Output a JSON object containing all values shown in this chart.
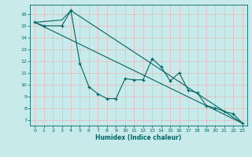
{
  "xlabel": "Humidex (Indice chaleur)",
  "ylabel": "",
  "background_color": "#c8eaea",
  "grid_color": "#e8b8b8",
  "line_color": "#006666",
  "xlim": [
    -0.5,
    23.5
  ],
  "ylim": [
    6.5,
    16.8
  ],
  "yticks": [
    7,
    8,
    9,
    10,
    11,
    12,
    13,
    14,
    15,
    16
  ],
  "xticks": [
    0,
    1,
    2,
    3,
    4,
    5,
    6,
    7,
    8,
    9,
    10,
    11,
    12,
    13,
    14,
    15,
    16,
    17,
    18,
    19,
    20,
    21,
    22,
    23
  ],
  "line1": {
    "x": [
      0,
      1,
      3,
      4,
      5,
      6,
      7,
      8,
      9,
      10,
      11,
      12,
      13,
      14,
      15,
      16,
      17,
      18,
      19,
      20,
      21,
      22,
      23
    ],
    "y": [
      15.3,
      15.0,
      15.0,
      16.3,
      11.8,
      9.8,
      9.2,
      8.8,
      8.8,
      10.5,
      10.4,
      10.4,
      12.2,
      11.5,
      10.3,
      11.0,
      9.5,
      9.3,
      8.2,
      8.0,
      7.7,
      7.5,
      6.7
    ]
  },
  "line2": {
    "x": [
      0,
      3,
      4,
      23
    ],
    "y": [
      15.3,
      15.5,
      16.3,
      6.7
    ]
  },
  "line3": {
    "x": [
      0,
      23
    ],
    "y": [
      15.3,
      6.7
    ]
  }
}
